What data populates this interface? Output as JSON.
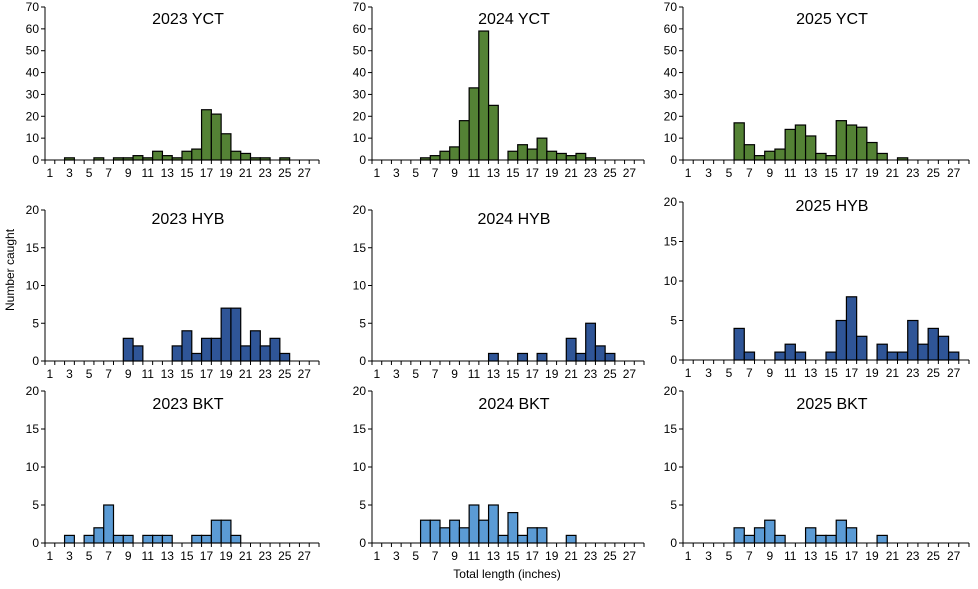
{
  "chart_data": {
    "type": "bar",
    "layout": "3x3 grid of histograms",
    "ylabel": "Number caught",
    "xlabel": "Total length  (inches)",
    "categories": [
      1,
      2,
      3,
      4,
      5,
      6,
      7,
      8,
      9,
      10,
      11,
      12,
      13,
      14,
      15,
      16,
      17,
      18,
      19,
      20,
      21,
      22,
      23,
      24,
      25,
      26,
      27,
      28
    ],
    "x_tick_labels": [
      "1",
      "3",
      "5",
      "7",
      "9",
      "11",
      "13",
      "15",
      "17",
      "19",
      "21",
      "23",
      "25",
      "27"
    ],
    "colors": {
      "YCT": "#548235",
      "HYB": "#2F5597",
      "BKT": "#5B9BD5",
      "edge": "#000000"
    },
    "grid": false,
    "panels": [
      {
        "title": "2023 YCT",
        "species": "YCT",
        "ylim": [
          0,
          70
        ],
        "yticks": [
          0,
          10,
          20,
          30,
          40,
          50,
          60,
          70
        ],
        "values": [
          0,
          0,
          1,
          0,
          0,
          1,
          0,
          1,
          1,
          2,
          1,
          4,
          2,
          1,
          4,
          5,
          23,
          21,
          12,
          4,
          3,
          1,
          1,
          0,
          1,
          0,
          0,
          0
        ]
      },
      {
        "title": "2024 YCT",
        "species": "YCT",
        "ylim": [
          0,
          70
        ],
        "yticks": [
          0,
          10,
          20,
          30,
          40,
          50,
          60,
          70
        ],
        "values": [
          0,
          0,
          0,
          0,
          0,
          1,
          2,
          4,
          6,
          18,
          33,
          59,
          25,
          0,
          4,
          7,
          5,
          10,
          4,
          3,
          2,
          3,
          1,
          0,
          0,
          0,
          0,
          0
        ]
      },
      {
        "title": "2025 YCT",
        "species": "YCT",
        "ylim": [
          0,
          70
        ],
        "yticks": [
          0,
          10,
          20,
          30,
          40,
          50,
          60,
          70
        ],
        "values": [
          0,
          0,
          0,
          0,
          0,
          17,
          7,
          2,
          4,
          5,
          14,
          16,
          11,
          3,
          2,
          18,
          16,
          15,
          8,
          3,
          0,
          1,
          0,
          0,
          0,
          0,
          0,
          0
        ]
      },
      {
        "title": "2023 HYB",
        "species": "HYB",
        "ylim": [
          0,
          20
        ],
        "yticks": [
          0,
          5,
          10,
          15,
          20
        ],
        "values": [
          0,
          0,
          0,
          0,
          0,
          0,
          0,
          0,
          3,
          2,
          0,
          0,
          0,
          2,
          4,
          1,
          3,
          3,
          7,
          7,
          2,
          4,
          2,
          3,
          1,
          0,
          0,
          0
        ]
      },
      {
        "title": "2024 HYB",
        "species": "HYB",
        "ylim": [
          0,
          20
        ],
        "yticks": [
          0,
          5,
          10,
          15,
          20
        ],
        "values": [
          0,
          0,
          0,
          0,
          0,
          0,
          0,
          0,
          0,
          0,
          0,
          0,
          1,
          0,
          0,
          1,
          0,
          1,
          0,
          0,
          3,
          1,
          5,
          2,
          1,
          0,
          0,
          0
        ]
      },
      {
        "title": "2025 HYB",
        "species": "HYB",
        "ylim": [
          0,
          20
        ],
        "yticks": [
          0,
          5,
          10,
          15,
          20
        ],
        "values": [
          0,
          0,
          0,
          0,
          0,
          4,
          1,
          0,
          0,
          1,
          2,
          1,
          0,
          0,
          1,
          5,
          8,
          3,
          0,
          2,
          1,
          1,
          5,
          2,
          4,
          3,
          1,
          0
        ]
      },
      {
        "title": "2023 BKT",
        "species": "BKT",
        "ylim": [
          0,
          20
        ],
        "yticks": [
          0,
          5,
          10,
          15,
          20
        ],
        "values": [
          0,
          0,
          1,
          0,
          1,
          2,
          5,
          1,
          1,
          0,
          1,
          1,
          1,
          0,
          0,
          1,
          1,
          3,
          3,
          1,
          0,
          0,
          0,
          0,
          0,
          0,
          0,
          0
        ]
      },
      {
        "title": "2024 BKT",
        "species": "BKT",
        "ylim": [
          0,
          20
        ],
        "yticks": [
          0,
          5,
          10,
          15,
          20
        ],
        "values": [
          0,
          0,
          0,
          0,
          0,
          3,
          3,
          2,
          3,
          2,
          5,
          3,
          5,
          1,
          4,
          1,
          2,
          2,
          0,
          0,
          1,
          0,
          0,
          0,
          0,
          0,
          0,
          0
        ]
      },
      {
        "title": "2025 BKT",
        "species": "BKT",
        "ylim": [
          0,
          20
        ],
        "yticks": [
          0,
          5,
          10,
          15,
          20
        ],
        "values": [
          0,
          0,
          0,
          0,
          0,
          2,
          1,
          2,
          3,
          1,
          0,
          0,
          2,
          1,
          1,
          3,
          2,
          0,
          0,
          1,
          0,
          0,
          0,
          0,
          0,
          0,
          0,
          0
        ]
      }
    ]
  }
}
